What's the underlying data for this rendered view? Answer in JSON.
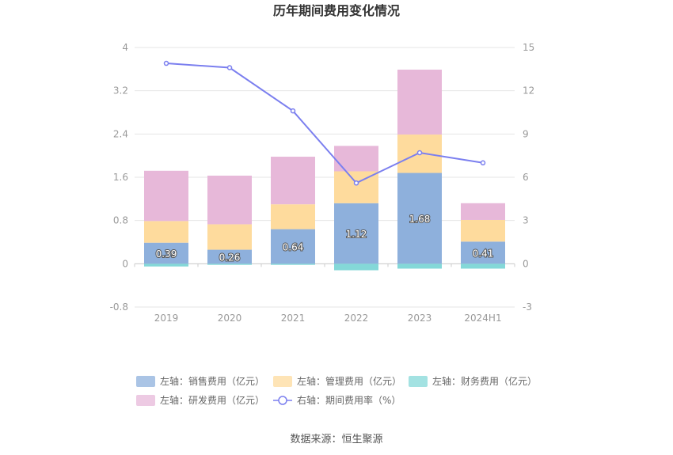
{
  "chart_data": {
    "type": "bar",
    "title": "历年期间费用变化情况",
    "categories": [
      "2019",
      "2020",
      "2021",
      "2022",
      "2023",
      "2024H1"
    ],
    "left_axis": {
      "ylim": [
        -0.8,
        4
      ],
      "ticks": [
        "4",
        "3.2",
        "2.4",
        "1.6",
        "0.8",
        "0",
        "-0.8"
      ]
    },
    "right_axis": {
      "ylim": [
        -3,
        15
      ],
      "ticks": [
        "15",
        "12",
        "9",
        "6",
        "3",
        "0",
        "-3"
      ]
    },
    "series": [
      {
        "name": "左轴：销售费用（亿元）",
        "type": "bar",
        "color": "#8eb0dc",
        "values": [
          0.39,
          0.26,
          0.64,
          1.12,
          1.68,
          0.41
        ],
        "labels": [
          "0.39",
          "0.26",
          "0.64",
          "1.12",
          "1.68",
          "0.41"
        ]
      },
      {
        "name": "左轴：管理费用（亿元）",
        "type": "bar",
        "color": "#fedb9d",
        "values": [
          0.4,
          0.47,
          0.46,
          0.59,
          0.71,
          0.4
        ]
      },
      {
        "name": "左轴：财务费用（亿元）",
        "type": "bar",
        "color": "#84d8d8",
        "values": [
          -0.05,
          -0.02,
          -0.02,
          -0.12,
          -0.09,
          -0.09
        ]
      },
      {
        "name": "左轴：研发费用（亿元）",
        "type": "bar",
        "color": "#e7b8d9",
        "values": [
          0.93,
          0.9,
          0.88,
          0.47,
          1.2,
          0.31
        ]
      },
      {
        "name": "右轴：期间费用率（%）",
        "type": "line",
        "axis": "right",
        "color": "#7b7fef",
        "values": [
          13.9,
          13.6,
          10.6,
          5.6,
          7.7,
          7.0
        ]
      }
    ],
    "legend_position": "bottom",
    "grid": true
  },
  "source_text": "数据来源：恒生聚源"
}
